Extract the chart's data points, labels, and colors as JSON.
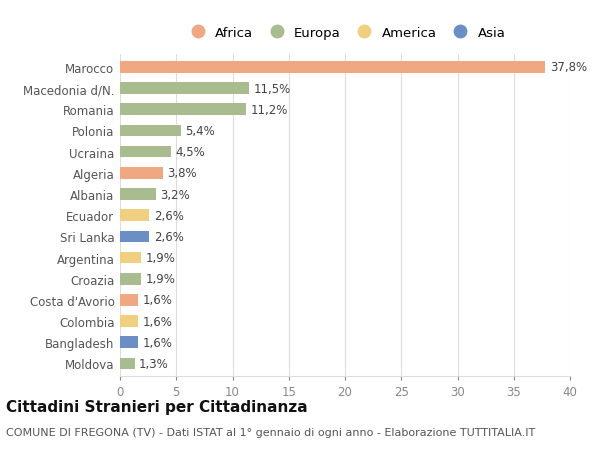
{
  "countries": [
    "Marocco",
    "Macedonia d/N.",
    "Romania",
    "Polonia",
    "Ucraina",
    "Algeria",
    "Albania",
    "Ecuador",
    "Sri Lanka",
    "Argentina",
    "Croazia",
    "Costa d'Avorio",
    "Colombia",
    "Bangladesh",
    "Moldova"
  ],
  "values": [
    37.8,
    11.5,
    11.2,
    5.4,
    4.5,
    3.8,
    3.2,
    2.6,
    2.6,
    1.9,
    1.9,
    1.6,
    1.6,
    1.6,
    1.3
  ],
  "labels": [
    "37,8%",
    "11,5%",
    "11,2%",
    "5,4%",
    "4,5%",
    "3,8%",
    "3,2%",
    "2,6%",
    "2,6%",
    "1,9%",
    "1,9%",
    "1,6%",
    "1,6%",
    "1,6%",
    "1,3%"
  ],
  "continents": [
    "Africa",
    "Europa",
    "Europa",
    "Europa",
    "Europa",
    "Africa",
    "Europa",
    "America",
    "Asia",
    "America",
    "Europa",
    "Africa",
    "America",
    "Asia",
    "Europa"
  ],
  "colors": {
    "Africa": "#F0A882",
    "Europa": "#A8BC8F",
    "America": "#F0D080",
    "Asia": "#6B8EC4"
  },
  "legend_order": [
    "Africa",
    "Europa",
    "America",
    "Asia"
  ],
  "xlim": [
    0,
    40
  ],
  "xticks": [
    0,
    5,
    10,
    15,
    20,
    25,
    30,
    35,
    40
  ],
  "title": "Cittadini Stranieri per Cittadinanza",
  "subtitle": "COMUNE DI FREGONA (TV) - Dati ISTAT al 1° gennaio di ogni anno - Elaborazione TUTTITALIA.IT",
  "background_color": "#ffffff",
  "grid_color": "#dddddd",
  "bar_height": 0.55,
  "label_fontsize": 8.5,
  "tick_fontsize": 8.5,
  "title_fontsize": 11,
  "subtitle_fontsize": 8
}
